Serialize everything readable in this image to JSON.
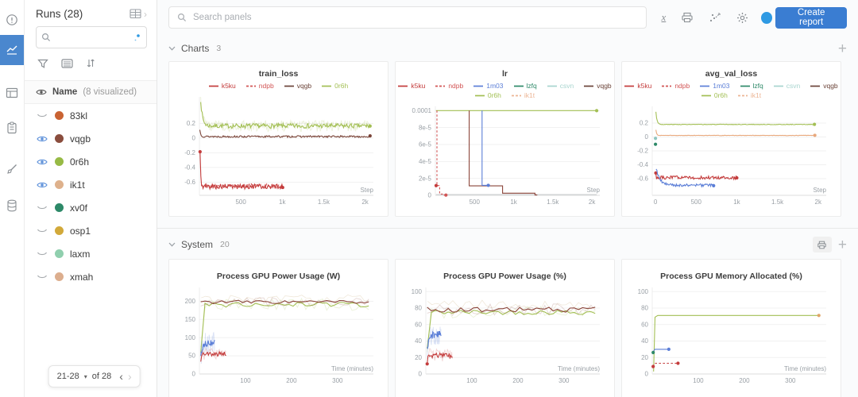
{
  "colors": {
    "accent": "#3a7dd2",
    "avatar_dot": "#2f9ae3",
    "rail_active": "#4a87ce"
  },
  "rail": {
    "items": [
      "info",
      "workspace-charts",
      "table",
      "logs",
      "sweep-brush",
      "artifacts-database"
    ]
  },
  "runs_panel": {
    "title": "Runs (28)",
    "search_value": "",
    "name_header": "Name",
    "visualized_note": "(8 visualized)",
    "runs": [
      {
        "name": "83kl",
        "color": "#c96333",
        "visible": false
      },
      {
        "name": "vqgb",
        "color": "#8a4d3d",
        "visible": true
      },
      {
        "name": "0r6h",
        "color": "#97ba45",
        "visible": true
      },
      {
        "name": "ik1t",
        "color": "#deb18c",
        "visible": true
      },
      {
        "name": "xv0f",
        "color": "#2d8968",
        "visible": false
      },
      {
        "name": "osp1",
        "color": "#d2a93a",
        "visible": false
      },
      {
        "name": "laxm",
        "color": "#90cfae",
        "visible": false
      },
      {
        "name": "xmah",
        "color": "#dcae8e",
        "visible": false
      }
    ],
    "pagination": {
      "range_label": "21-28",
      "of_label": "of 28"
    }
  },
  "topbar": {
    "search_placeholder": "Search panels",
    "create_report_label": "Create report",
    "icons": [
      "latex-icon",
      "print-icon",
      "zoom-to-fit-icon",
      "settings-gear-icon"
    ]
  },
  "sections": [
    {
      "label": "Charts",
      "count": "3"
    },
    {
      "label": "System",
      "count": "20"
    }
  ],
  "chart_data": [
    {
      "type": "line",
      "title": "train_loss",
      "xlabel": "Step",
      "xlim": [
        0,
        2100
      ],
      "ylim": [
        -0.78,
        0.56
      ],
      "xticks": [
        {
          "v": 500,
          "label": "500"
        },
        {
          "v": 1000,
          "label": "1k"
        },
        {
          "v": 1500,
          "label": "1.5k"
        },
        {
          "v": 2000,
          "label": "2k"
        }
      ],
      "yticks": [
        {
          "v": 0.2,
          "label": "0.2"
        },
        {
          "v": 0,
          "label": "0"
        },
        {
          "v": -0.2,
          "label": "-0.2"
        },
        {
          "v": -0.4,
          "label": "-0.4"
        },
        {
          "v": -0.6,
          "label": "-0.6"
        }
      ],
      "legend_rows": [
        [
          {
            "name": "k5ku",
            "color": "#c43c3c",
            "dash": false
          },
          {
            "name": "ndpb",
            "color": "#d25555",
            "dash": true
          },
          {
            "name": "vqgb",
            "color": "#6b4338",
            "dash": false
          },
          {
            "name": "0r6h",
            "color": "#a3bf54",
            "dash": false
          }
        ]
      ],
      "series": [
        {
          "name": "0r6h",
          "color": "#a3bf54",
          "mode": "noisy",
          "seed": 7,
          "x0": 15,
          "x1": 2060,
          "base": 0.165,
          "amp": 0.032,
          "startY": 0.52,
          "tau": 22,
          "halo": true,
          "endDot": true
        },
        {
          "name": "vqgb",
          "color": "#7a4438",
          "mode": "noisy",
          "seed": 13,
          "x0": 5,
          "x1": 2060,
          "base": 0.02,
          "amp": 0.012,
          "startY": 0.11,
          "tau": 12,
          "endDot": true
        },
        {
          "name": "ndpb",
          "color": "#d25555",
          "mode": "noisy",
          "seed": 21,
          "x0": 25,
          "x1": 995,
          "base": -0.65,
          "amp": 0.028,
          "dash": true
        },
        {
          "name": "k5ku",
          "color": "#c43c3c",
          "mode": "noisy",
          "seed": 5,
          "x0": 8,
          "x1": 1005,
          "base": -0.66,
          "amp": 0.034,
          "startY": -0.2,
          "tau": 7,
          "startDot": true,
          "endDot": true
        }
      ]
    },
    {
      "type": "line",
      "title": "lr",
      "xlabel": "Step",
      "xlim": [
        0,
        2100
      ],
      "ylim": [
        0,
        0.000105
      ],
      "xticks": [
        {
          "v": 500,
          "label": "500"
        },
        {
          "v": 1000,
          "label": "1k"
        },
        {
          "v": 1500,
          "label": "1.5k"
        },
        {
          "v": 2000,
          "label": "2k"
        }
      ],
      "yticks": [
        {
          "v": 0.0001,
          "label": "0.0001"
        },
        {
          "v": 8e-05,
          "label": "8e-5"
        },
        {
          "v": 6e-05,
          "label": "6e-5"
        },
        {
          "v": 4e-05,
          "label": "4e-5"
        },
        {
          "v": 2e-05,
          "label": "2e-5"
        },
        {
          "v": 0,
          "label": "0"
        }
      ],
      "legend_rows": [
        [
          {
            "name": "k5ku",
            "color": "#c43c3c",
            "dash": false
          },
          {
            "name": "ndpb",
            "color": "#d25555",
            "dash": true
          },
          {
            "name": "1m03",
            "color": "#5b7ed7",
            "dash": false
          },
          {
            "name": "lzfq",
            "color": "#2d8968",
            "dash": false
          },
          {
            "name": "csvn",
            "color": "#a8d5cf",
            "dash": false
          },
          {
            "name": "vqgb",
            "color": "#6b4338",
            "dash": false
          }
        ],
        [
          {
            "name": "0r6h",
            "color": "#a3bf54",
            "dash": false
          },
          {
            "name": "ik1t",
            "color": "#ecb595",
            "dash": true
          }
        ]
      ],
      "series": [
        {
          "name": "csvn",
          "color": "#cccfd2",
          "mode": "points",
          "points": [
            [
              8,
              8e-07
            ],
            [
              2060,
              8e-07
            ]
          ]
        },
        {
          "name": "0r6h",
          "color": "#a3bf54",
          "mode": "points",
          "points": [
            [
              8,
              0.0001
            ],
            [
              2060,
              0.0001
            ]
          ],
          "endDot": true
        },
        {
          "name": "ndpb",
          "color": "#d25555",
          "mode": "points",
          "dash": true,
          "points": [
            [
              20,
              0.0001
            ],
            [
              20,
              1.15e-05
            ],
            [
              55,
              1.15e-05
            ],
            [
              55,
              1.5e-06
            ],
            [
              100,
              1.5e-06
            ],
            [
              100,
              3e-07
            ],
            [
              135,
              3e-07
            ]
          ],
          "endDot": true
        },
        {
          "name": "k5ku",
          "color": "#c43c3c",
          "mode": "points",
          "points": [
            [
              10,
              1.15e-05
            ],
            [
              24,
              1.15e-05
            ]
          ],
          "startDot": true
        },
        {
          "name": "vqgb",
          "color": "#8a4338",
          "mode": "points",
          "points": [
            [
              432,
              0.0001
            ],
            [
              432,
              1.12e-05
            ],
            [
              858,
              1.12e-05
            ],
            [
              858,
              2.5e-06
            ],
            [
              1272,
              2.5e-06
            ],
            [
              1272,
              4e-07
            ],
            [
              1302,
              4e-07
            ]
          ]
        },
        {
          "name": "1m03",
          "color": "#5b7ed7",
          "mode": "points",
          "points": [
            [
              597,
              0.0001
            ],
            [
              597,
              1.18e-05
            ],
            [
              676,
              1.18e-05
            ]
          ],
          "endDot": true
        }
      ]
    },
    {
      "type": "line",
      "title": "avg_val_loss",
      "xlabel": "Step",
      "xlim": [
        -40,
        2100
      ],
      "ylim": [
        -0.84,
        0.44
      ],
      "xticks": [
        {
          "v": 0,
          "label": "0"
        },
        {
          "v": 500,
          "label": "500"
        },
        {
          "v": 1000,
          "label": "1k"
        },
        {
          "v": 1500,
          "label": "1.5k"
        },
        {
          "v": 2000,
          "label": "2k"
        }
      ],
      "yticks": [
        {
          "v": 0.2,
          "label": "0.2"
        },
        {
          "v": 0,
          "label": "0"
        },
        {
          "v": -0.2,
          "label": "-0.2"
        },
        {
          "v": -0.4,
          "label": "-0.4"
        },
        {
          "v": -0.6,
          "label": "-0.6"
        }
      ],
      "legend_rows": [
        [
          {
            "name": "k5ku",
            "color": "#c43c3c",
            "dash": false
          },
          {
            "name": "ndpb",
            "color": "#d25555",
            "dash": true
          },
          {
            "name": "1m03",
            "color": "#5b7ed7",
            "dash": false
          },
          {
            "name": "lzfq",
            "color": "#2d8968",
            "dash": false
          },
          {
            "name": "csvn",
            "color": "#a8d5cf",
            "dash": false
          },
          {
            "name": "vqgb",
            "color": "#6b4338",
            "dash": false
          }
        ],
        [
          {
            "name": "0r6h",
            "color": "#a3bf54",
            "dash": false
          },
          {
            "name": "ik1t",
            "color": "#ecb595",
            "dash": true
          }
        ]
      ],
      "series": [
        {
          "name": "0r6h",
          "color": "#a3bf54",
          "mode": "noisy",
          "seed": 3,
          "x0": 5,
          "x1": 1955,
          "base": 0.18,
          "amp": 0.004,
          "startY": 0.36,
          "tau": 14,
          "endDot": true
        },
        {
          "name": "ik1t",
          "color": "#e8a87c",
          "mode": "noisy",
          "seed": 4,
          "x0": 5,
          "x1": 1960,
          "base": 0.022,
          "amp": 0.003,
          "startY": 0.1,
          "tau": 10,
          "endDot": true
        },
        {
          "name": "csvn",
          "color": "#8fc6c0",
          "mode": "points",
          "points": [
            [
              0,
              -0.02
            ],
            [
              10,
              -0.02
            ]
          ],
          "startDot": true
        },
        {
          "name": "lzfq",
          "color": "#2d8968",
          "mode": "points",
          "points": [
            [
              0,
              -0.105
            ],
            [
              10,
              -0.105
            ]
          ],
          "startDot": true
        },
        {
          "name": "k5ku",
          "color": "#c43c3c",
          "mode": "noisy",
          "seed": 6,
          "x0": 4,
          "x1": 1000,
          "base": -0.585,
          "amp": 0.024,
          "startY": -0.52,
          "tau": 3,
          "startDot": true,
          "endDot": true
        },
        {
          "name": "1m03",
          "color": "#5b7ed7",
          "mode": "noisy",
          "seed": 9,
          "x0": 8,
          "x1": 715,
          "base": -0.695,
          "amp": 0.02,
          "startY": -0.45,
          "tau": 45,
          "endDot": true
        }
      ]
    },
    {
      "type": "line",
      "title": "Process GPU Power Usage (W)",
      "xlabel": "Time (minutes)",
      "xlim": [
        0,
        378
      ],
      "ylim": [
        0,
        238
      ],
      "xticks": [
        {
          "v": 100,
          "label": "100"
        },
        {
          "v": 200,
          "label": "200"
        },
        {
          "v": 300,
          "label": "300"
        }
      ],
      "yticks": [
        {
          "v": 0,
          "label": "0"
        },
        {
          "v": 50,
          "label": "50"
        },
        {
          "v": 100,
          "label": "100"
        },
        {
          "v": 150,
          "label": "150"
        },
        {
          "v": 200,
          "label": "200"
        }
      ],
      "series": [
        {
          "name": "xmah",
          "color": "#d9c5a2",
          "mode": "noisy",
          "seed": 31,
          "x0": 4,
          "x1": 368,
          "base": 205,
          "amp": 13,
          "opacity": 0.45,
          "width": 0.7
        },
        {
          "name": "0r6h",
          "color": "#a3bf54",
          "mode": "noisy",
          "seed": 32,
          "x0": 3,
          "x1": 368,
          "base": 191,
          "amp": 7,
          "startY": 60,
          "tau": 1.5,
          "halo": true
        },
        {
          "name": "vqgb",
          "color": "#8a4338",
          "mode": "noisy",
          "seed": 33,
          "x0": 3,
          "x1": 368,
          "base": 198,
          "amp": 5,
          "halo": true
        },
        {
          "name": "1m03",
          "color": "#5b7ed7",
          "mode": "noisy",
          "seed": 34,
          "x0": 3,
          "x1": 33,
          "base": 86,
          "amp": 8,
          "startY": 48,
          "tau": 4,
          "halo": true,
          "haloAmp": 30
        },
        {
          "name": "k5ku",
          "color": "#c43c3c",
          "mode": "noisy",
          "seed": 35,
          "x0": 3,
          "x1": 58,
          "base": 55,
          "amp": 6,
          "startY": 40,
          "tau": 2,
          "halo": true,
          "haloAmp": 16
        }
      ]
    },
    {
      "type": "line",
      "title": "Process GPU Power Usage (%)",
      "xlabel": "Time (minutes)",
      "xlim": [
        0,
        378
      ],
      "ylim": [
        0,
        105
      ],
      "xticks": [
        {
          "v": 100,
          "label": "100"
        },
        {
          "v": 200,
          "label": "200"
        },
        {
          "v": 300,
          "label": "300"
        }
      ],
      "yticks": [
        {
          "v": 0,
          "label": "0"
        },
        {
          "v": 20,
          "label": "20"
        },
        {
          "v": 40,
          "label": "40"
        },
        {
          "v": 60,
          "label": "60"
        },
        {
          "v": 80,
          "label": "80"
        },
        {
          "v": 100,
          "label": "100"
        }
      ],
      "series": [
        {
          "name": "xmah",
          "color": "#d9c5a2",
          "mode": "noisy",
          "seed": 41,
          "x0": 4,
          "x1": 368,
          "base": 84,
          "amp": 6,
          "opacity": 0.45,
          "width": 0.7
        },
        {
          "name": "0r6h",
          "color": "#a3bf54",
          "mode": "noisy",
          "seed": 42,
          "x0": 3,
          "x1": 368,
          "base": 75,
          "amp": 3,
          "startY": 30,
          "tau": 1.5,
          "halo": true
        },
        {
          "name": "vqgb",
          "color": "#8a4338",
          "mode": "noisy",
          "seed": 43,
          "x0": 3,
          "x1": 368,
          "base": 78,
          "amp": 3,
          "halo": true
        },
        {
          "name": "1m03",
          "color": "#5b7ed7",
          "mode": "noisy",
          "seed": 44,
          "x0": 3,
          "x1": 33,
          "base": 48,
          "amp": 4,
          "startY": 30,
          "tau": 4,
          "halo": true,
          "haloAmp": 13
        },
        {
          "name": "k5ku",
          "color": "#c43c3c",
          "mode": "noisy",
          "seed": 45,
          "x0": 3,
          "x1": 58,
          "base": 22.5,
          "amp": 3,
          "startY": 15,
          "tau": 2,
          "halo": true,
          "haloAmp": 9,
          "startDot": true
        }
      ]
    },
    {
      "type": "line",
      "title": "Process GPU Memory Allocated (%)",
      "xlabel": "Time (minutes)",
      "xlim": [
        0,
        378
      ],
      "ylim": [
        0,
        105
      ],
      "xticks": [
        {
          "v": 100,
          "label": "100"
        },
        {
          "v": 200,
          "label": "200"
        },
        {
          "v": 300,
          "label": "300"
        }
      ],
      "yticks": [
        {
          "v": 0,
          "label": "0"
        },
        {
          "v": 20,
          "label": "20"
        },
        {
          "v": 40,
          "label": "40"
        },
        {
          "v": 60,
          "label": "60"
        },
        {
          "v": 80,
          "label": "80"
        },
        {
          "v": 100,
          "label": "100"
        }
      ],
      "series": [
        {
          "name": "0r6h",
          "color": "#a3bf54",
          "mode": "points",
          "points": [
            [
              3,
              3
            ],
            [
              6,
              69
            ],
            [
              12,
              71
            ],
            [
              362,
              71
            ]
          ],
          "endDot": true,
          "endDotColor": "#dfa566"
        },
        {
          "name": "lzfq",
          "color": "#2d8968",
          "mode": "points",
          "points": [
            [
              2,
              26
            ],
            [
              5,
              27
            ]
          ],
          "startDot": true
        },
        {
          "name": "1m03",
          "color": "#5b7ed7",
          "mode": "points",
          "points": [
            [
              3,
              28
            ],
            [
              6,
              30
            ],
            [
              36,
              30
            ]
          ],
          "endDot": true
        },
        {
          "name": "k5ku",
          "color": "#c43c3c",
          "mode": "points",
          "points": [
            [
              2,
              9
            ],
            [
              5,
              13
            ],
            [
              56,
              13
            ]
          ],
          "dash": true,
          "startDot": true,
          "endDot": true
        }
      ]
    }
  ]
}
